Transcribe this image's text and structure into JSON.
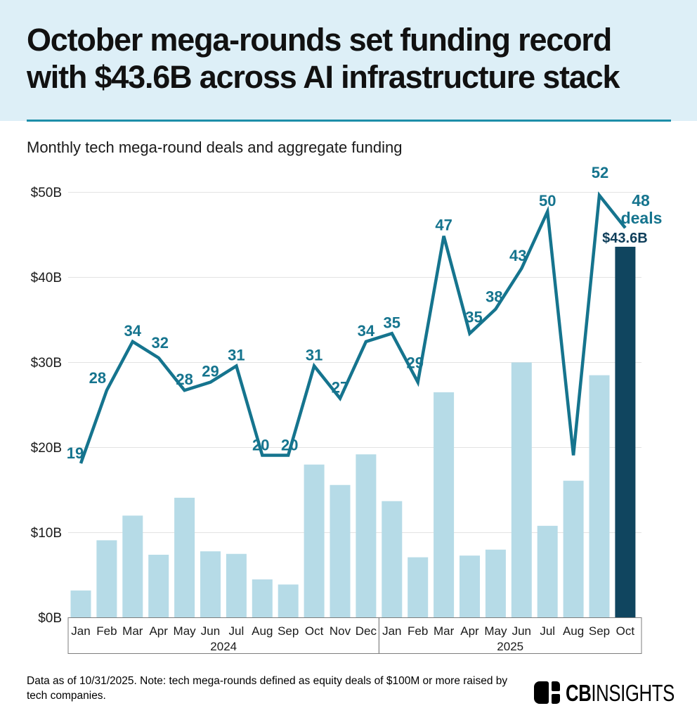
{
  "header": {
    "title_line1": "October mega-rounds set funding record",
    "title_line2": "with $43.6B across AI infrastructure stack"
  },
  "subtitle": "Monthly tech mega-round deals and aggregate funding",
  "chart_data": {
    "type": "bar",
    "title": "Monthly tech mega-round deals and aggregate funding",
    "x_groups": [
      {
        "year": "2024",
        "months": [
          "Jan",
          "Feb",
          "Mar",
          "Apr",
          "May",
          "Jun",
          "Jul",
          "Aug",
          "Sep",
          "Oct",
          "Nov",
          "Dec"
        ]
      },
      {
        "year": "2025",
        "months": [
          "Jan",
          "Feb",
          "Mar",
          "Apr",
          "May",
          "Jun",
          "Jul",
          "Aug",
          "Sep",
          "Oct"
        ]
      }
    ],
    "y_axis": {
      "tick_labels": [
        "$0B",
        "$10B",
        "$20B",
        "$30B",
        "$40B",
        "$50B"
      ],
      "min": 0,
      "max": 50,
      "grid": true
    },
    "series": [
      {
        "name": "Aggregate funding ($B)",
        "type": "bar",
        "values": [
          3.2,
          9.1,
          12.0,
          7.4,
          14.1,
          7.8,
          7.5,
          4.5,
          3.9,
          18.0,
          15.6,
          19.2,
          13.7,
          7.1,
          26.5,
          7.3,
          8.0,
          30.0,
          10.8,
          16.1,
          28.5,
          43.6
        ]
      },
      {
        "name": "Deals",
        "type": "line",
        "values": [
          19,
          28,
          34,
          32,
          28,
          29,
          31,
          20,
          20,
          31,
          27,
          34,
          35,
          29,
          47,
          35,
          38,
          43,
          50,
          20,
          52,
          48
        ]
      }
    ],
    "deal_labels": [
      "19",
      "28",
      "34",
      "32",
      "28",
      "29",
      "31",
      "20",
      "20",
      "31",
      "27",
      "34",
      "35",
      "29",
      "47",
      "35",
      "38",
      "43",
      "50",
      "",
      "52",
      ""
    ],
    "highlight": {
      "month": "Oct 2025",
      "funding_label": "$43.6B",
      "deals_label_line1": "48",
      "deals_label_line2": "deals"
    },
    "legend_position": "none"
  },
  "footer": {
    "note": "Data as of 10/31/2025. Note: tech mega-rounds defined as equity deals of $100M or more raised by tech companies.",
    "logo_cb": "CB",
    "logo_insights": "INSIGHTS"
  },
  "colors": {
    "header_bg": "#ddeff7",
    "divider": "#1d8ea9",
    "line": "#15748e",
    "deal_label": "#15748e",
    "bar": "#b6dbe7",
    "bar_highlight": "#10455f",
    "highlight_text": "#0e3e5a",
    "grid": "#e3e3e3",
    "axis_box": "#7d7d7d",
    "text": "#1a1a1a"
  }
}
